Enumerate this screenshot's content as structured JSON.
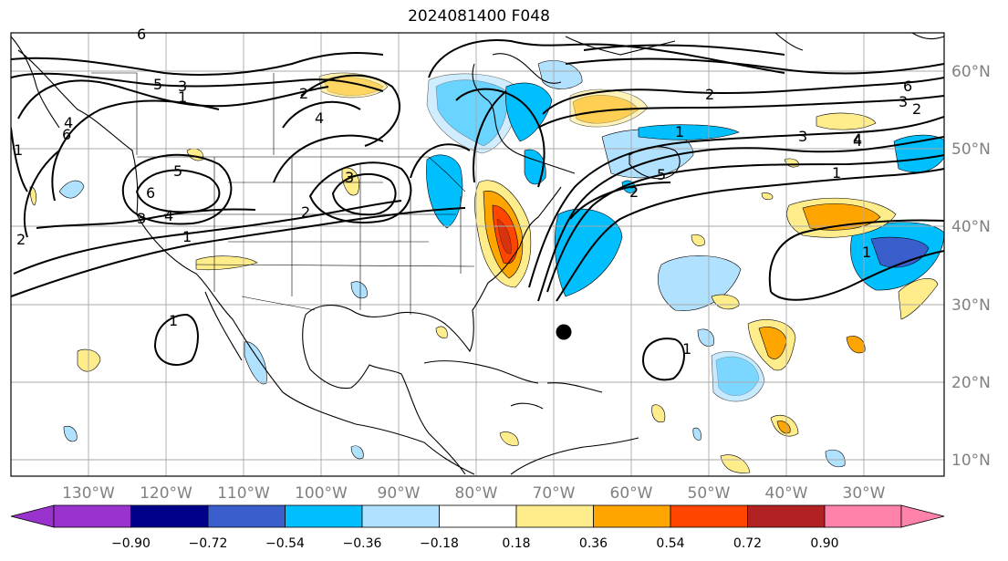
{
  "title": "2024081400 F048",
  "longitude_labels": [
    "130°W",
    "120°W",
    "110°W",
    "100°W",
    "90°W",
    "80°W",
    "70°W",
    "60°W",
    "50°W",
    "40°W",
    "30°W"
  ],
  "latitude_labels": [
    "60°N",
    "50°N",
    "40°N",
    "30°N",
    "20°N",
    "10°N"
  ],
  "colorbar": {
    "ticks": [
      "−0.90",
      "−0.72",
      "−0.54",
      "−0.36",
      "−0.18",
      "0.18",
      "0.36",
      "0.54",
      "0.72",
      "0.90"
    ],
    "colors": [
      "#9a32cd",
      "#00008b",
      "#3a5fcd",
      "#00bfff",
      "#b0e2ff",
      "#ffffff",
      "#ffec8b",
      "#ffa500",
      "#ff4500",
      "#b22222",
      "#ff82ab"
    ]
  },
  "contour_labels": [
    "6",
    "5",
    "3",
    "2",
    "1",
    "4",
    "1",
    "2",
    "3",
    "4",
    "5",
    "6",
    "1",
    "2",
    "3",
    "4",
    "1",
    "2",
    "3",
    "4",
    "5",
    "6",
    "1",
    "1",
    "2",
    "3",
    "4",
    "6",
    "1",
    "2",
    "1"
  ],
  "marker": "storm-position-dot"
}
